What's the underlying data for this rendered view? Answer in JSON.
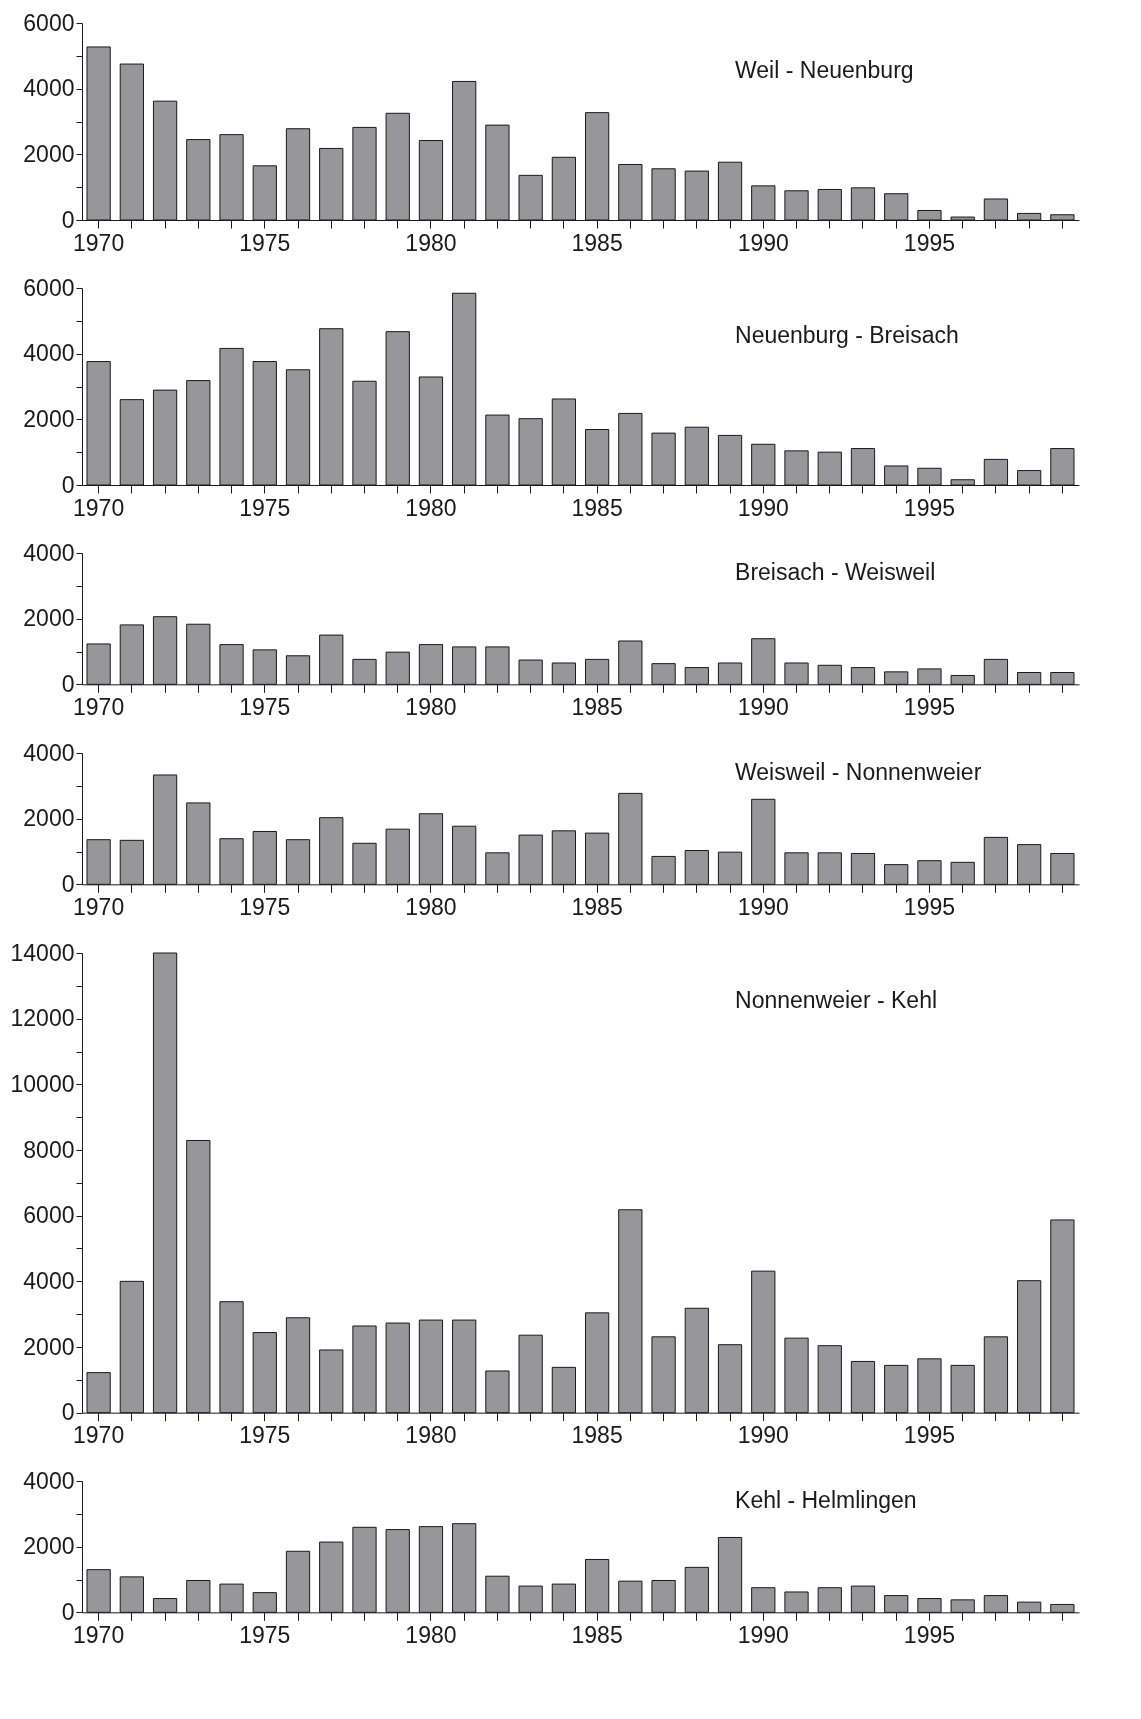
{
  "chart_data": [
    {
      "type": "bar",
      "annotations": [
        "Weil - Neuenburg"
      ],
      "color": "#97979b",
      "categories": [
        "1970",
        null,
        null,
        null,
        null,
        "1975",
        null,
        null,
        null,
        null,
        "1980",
        null,
        null,
        null,
        null,
        "1985",
        null,
        null,
        null,
        null,
        "1990",
        null,
        null,
        null,
        null,
        "1995",
        null,
        null,
        null,
        null
      ],
      "values": [
        5270,
        4750,
        3620,
        2450,
        2600,
        1650,
        2780,
        2180,
        2820,
        3250,
        2420,
        4220,
        2890,
        1360,
        1910,
        3270,
        1690,
        1560,
        1490,
        1760,
        1040,
        890,
        930,
        980,
        800,
        290,
        90,
        640,
        200,
        160
      ],
      "ylim": [
        0,
        6000
      ],
      "yticks": [
        0,
        {
          "value": 1000,
          "label": null
        },
        2000,
        {
          "value": 3000,
          "label": null
        },
        4000,
        {
          "value": 5000,
          "label": null
        },
        6000
      ],
      "grid": false
    },
    {
      "type": "bar",
      "annotations": [
        "Neuenburg - Breisach"
      ],
      "color": "#97979b",
      "categories": [
        "1970",
        null,
        null,
        null,
        null,
        "1975",
        null,
        null,
        null,
        null,
        "1980",
        null,
        null,
        null,
        null,
        "1985",
        null,
        null,
        null,
        null,
        "1990",
        null,
        null,
        null,
        null,
        "1995",
        null,
        null,
        null,
        null
      ],
      "values": [
        3760,
        2600,
        2890,
        3180,
        4160,
        3760,
        3510,
        4760,
        3160,
        4670,
        3290,
        5840,
        2130,
        2020,
        2620,
        1690,
        2180,
        1580,
        1760,
        1510,
        1240,
        1040,
        1000,
        1110,
        580,
        510,
        160,
        780,
        440,
        1110
      ],
      "ylim": [
        0,
        6000
      ],
      "yticks": [
        0,
        {
          "value": 1000,
          "label": null
        },
        2000,
        {
          "value": 3000,
          "label": null
        },
        4000,
        {
          "value": 5000,
          "label": null
        },
        6000
      ],
      "grid": false
    },
    {
      "type": "bar",
      "annotations": [
        "Breisach - Weisweil"
      ],
      "color": "#97979b",
      "categories": [
        "1970",
        null,
        null,
        null,
        null,
        "1975",
        null,
        null,
        null,
        null,
        "1980",
        null,
        null,
        null,
        null,
        "1985",
        null,
        null,
        null,
        null,
        "1990",
        null,
        null,
        null,
        null,
        "1995",
        null,
        null,
        null,
        null
      ],
      "values": [
        1230,
        1810,
        2060,
        1830,
        1210,
        1050,
        870,
        1500,
        760,
        980,
        1210,
        1140,
        1140,
        740,
        650,
        760,
        1320,
        630,
        510,
        650,
        1390,
        650,
        580,
        510,
        380,
        470,
        270,
        760,
        360,
        360
      ],
      "ylim": [
        0,
        4000
      ],
      "yticks": [
        0,
        {
          "value": 1000,
          "label": null
        },
        2000,
        {
          "value": 3000,
          "label": null
        },
        4000
      ],
      "grid": false
    },
    {
      "type": "bar",
      "annotations": [
        "Weisweil - Nonnenweier"
      ],
      "color": "#97979b",
      "categories": [
        "1970",
        null,
        null,
        null,
        null,
        "1975",
        null,
        null,
        null,
        null,
        "1980",
        null,
        null,
        null,
        null,
        "1985",
        null,
        null,
        null,
        null,
        "1990",
        null,
        null,
        null,
        null,
        "1995",
        null,
        null,
        null,
        null
      ],
      "values": [
        1360,
        1340,
        3330,
        2480,
        1390,
        1610,
        1360,
        2030,
        1250,
        1680,
        2150,
        1770,
        960,
        1500,
        1630,
        1560,
        2770,
        850,
        1030,
        980,
        2590,
        960,
        960,
        940,
        600,
        720,
        670,
        1430,
        1210,
        940
      ],
      "ylim": [
        0,
        4000
      ],
      "yticks": [
        0,
        {
          "value": 1000,
          "label": null
        },
        2000,
        {
          "value": 3000,
          "label": null
        },
        4000
      ],
      "grid": false
    },
    {
      "type": "bar",
      "annotations": [
        "Nonnenweier - Kehl"
      ],
      "color": "#97979b",
      "categories": [
        "1970",
        null,
        null,
        null,
        null,
        "1975",
        null,
        null,
        null,
        null,
        "1980",
        null,
        null,
        null,
        null,
        "1985",
        null,
        null,
        null,
        null,
        "1990",
        null,
        null,
        null,
        null,
        "1995",
        null,
        null,
        null,
        null
      ],
      "values": [
        1220,
        4000,
        14000,
        8290,
        3380,
        2440,
        2890,
        1910,
        2640,
        2730,
        2820,
        2820,
        1270,
        2360,
        1380,
        3040,
        6180,
        2310,
        3180,
        2070,
        4310,
        2270,
        2040,
        1560,
        1440,
        1640,
        1440,
        2310,
        4020,
        5870
      ],
      "ylim": [
        0,
        14000
      ],
      "yticks": [
        0,
        {
          "value": 1000,
          "label": null
        },
        2000,
        {
          "value": 3000,
          "label": null
        },
        4000,
        {
          "value": 5000,
          "label": null
        },
        6000,
        {
          "value": 7000,
          "label": null
        },
        8000,
        {
          "value": 9000,
          "label": null
        },
        10000,
        {
          "value": 11000,
          "label": null
        },
        12000,
        {
          "value": 13000,
          "label": null
        },
        14000
      ],
      "grid": false
    },
    {
      "type": "bar",
      "annotations": [
        "Kehl - Helmlingen"
      ],
      "color": "#97979b",
      "categories": [
        "1970",
        null,
        null,
        null,
        null,
        "1975",
        null,
        null,
        null,
        null,
        "1980",
        null,
        null,
        null,
        null,
        "1985",
        null,
        null,
        null,
        null,
        "1990",
        null,
        null,
        null,
        null,
        "1995",
        null,
        null,
        null,
        null
      ],
      "values": [
        1300,
        1080,
        420,
        970,
        860,
        600,
        1860,
        2140,
        2590,
        2520,
        2610,
        2700,
        1100,
        800,
        860,
        1610,
        950,
        970,
        1370,
        2280,
        750,
        620,
        750,
        800,
        510,
        420,
        380,
        510,
        310,
        240
      ],
      "ylim": [
        0,
        4000
      ],
      "yticks": [
        0,
        {
          "value": 1000,
          "label": null
        },
        2000,
        {
          "value": 3000,
          "label": null
        },
        4000
      ],
      "grid": false
    }
  ]
}
